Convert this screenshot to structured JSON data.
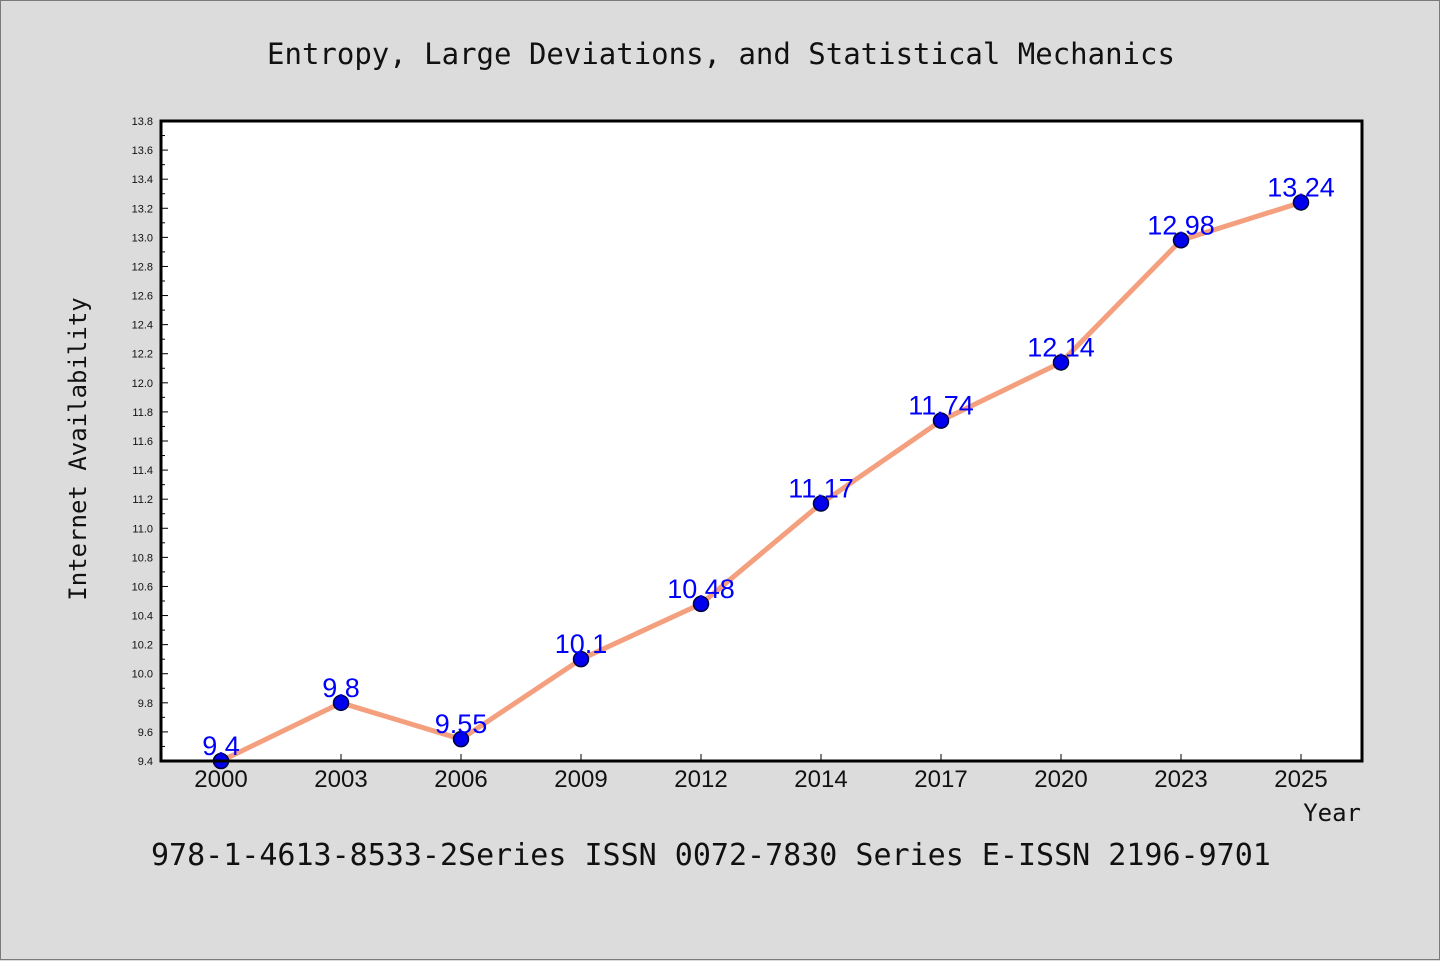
{
  "colors": {
    "background": "#dcdcdc",
    "plot_background": "#ffffff",
    "line": "#f4a07e",
    "marker_fill": "#0000ee",
    "marker_edge": "#00003a",
    "data_label": "#0000ff"
  },
  "footer": {
    "text": "978-1-4613-8533-2Series ISSN 0072-7830 Series E-ISSN 2196-9701"
  },
  "chart_data": {
    "type": "line",
    "title": "Entropy, Large Deviations, and Statistical Mechanics",
    "xlabel": "Year",
    "ylabel": "Internet Availability",
    "categories": [
      "2000",
      "2003",
      "2006",
      "2009",
      "2012",
      "2014",
      "2017",
      "2020",
      "2023",
      "2025"
    ],
    "series": [
      {
        "values": [
          9.4,
          9.8,
          9.55,
          10.1,
          10.48,
          11.17,
          11.74,
          12.14,
          12.98,
          13.24
        ],
        "labels": [
          "9.4",
          "9.8",
          "9.55",
          "10.1",
          "10.48",
          "11.17",
          "11.74",
          "12.14",
          "12.98",
          "13.24"
        ]
      }
    ],
    "ylim": [
      9.4,
      13.8
    ],
    "yticks": [
      "9.4",
      "9.6",
      "9.8",
      "10.0",
      "10.2",
      "10.4",
      "10.6",
      "10.8",
      "11.0",
      "11.2",
      "11.4",
      "11.6",
      "11.8",
      "12.0",
      "12.2",
      "12.4",
      "12.6",
      "12.8",
      "13.0",
      "13.2",
      "13.4",
      "13.6",
      "13.8"
    ],
    "grid": false,
    "legend": "none"
  }
}
